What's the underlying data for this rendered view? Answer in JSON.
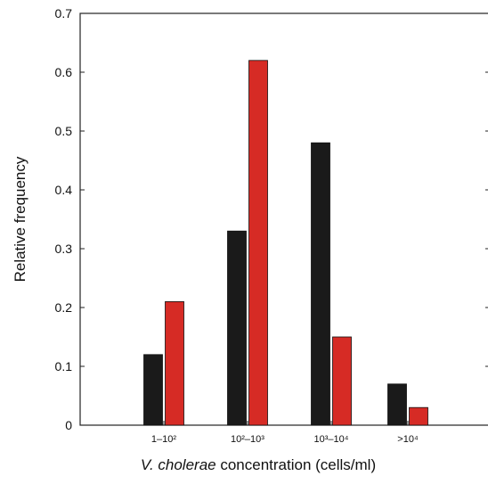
{
  "chart_data": {
    "type": "bar",
    "categories": [
      "1–10²",
      "10²–10³",
      "10³–10⁴",
      ">10⁴"
    ],
    "series": [
      {
        "color": "#1a1a1a",
        "values": [
          0.12,
          0.33,
          0.48,
          0.07
        ]
      },
      {
        "color": "#d62b25",
        "values": [
          0.21,
          0.62,
          0.15,
          0.03
        ]
      }
    ],
    "xlabel_italic": "V. cholerae",
    "xlabel_rest": " concentration (cells/ml)",
    "ylabel": "Relative frequency",
    "ylim": [
      0,
      0.7
    ],
    "yticks": [
      "0",
      "0.1",
      "0.2",
      "0.3",
      "0.4",
      "0.5",
      "0.6",
      "0.7"
    ],
    "grid": false,
    "legend": "none"
  }
}
